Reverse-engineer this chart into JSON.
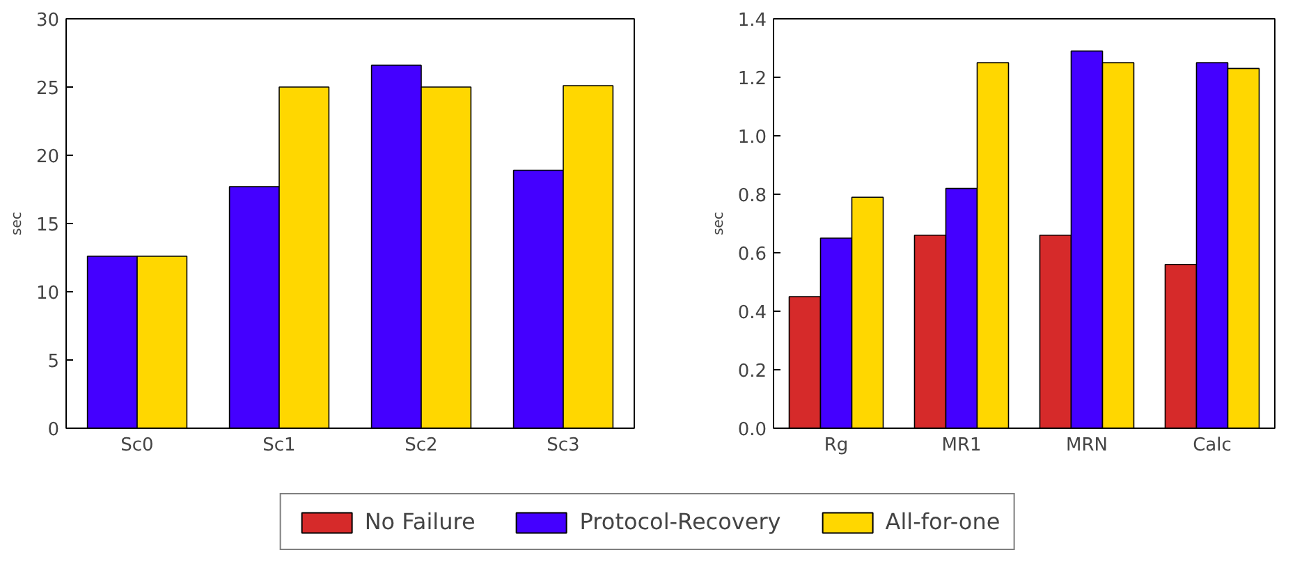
{
  "chart_data": [
    {
      "type": "bar",
      "categories": [
        "Sc0",
        "Sc1",
        "Sc2",
        "Sc3"
      ],
      "ylabel": "sec",
      "ylim": [
        0,
        30
      ],
      "yticks": [
        0,
        5,
        10,
        15,
        20,
        25,
        30
      ],
      "grid": false,
      "series": [
        {
          "color": "#4400ff",
          "values": [
            12.6,
            17.7,
            26.6,
            18.9
          ]
        },
        {
          "color": "#ffd700",
          "values": [
            12.6,
            25.0,
            25.0,
            25.1
          ]
        }
      ]
    },
    {
      "type": "bar",
      "categories": [
        "Rg",
        "MR1",
        "MRN",
        "Calc"
      ],
      "ylabel": "sec",
      "ylim": [
        0,
        1.4
      ],
      "yticks": [
        {
          "value": 0,
          "label": "0.0"
        },
        0.2,
        0.4,
        0.6,
        0.8,
        {
          "value": 1,
          "label": "1.0"
        },
        1.2,
        1.4
      ],
      "grid": false,
      "legend": "bottom",
      "series": [
        {
          "name": "No Failure",
          "color": "#d62a2a",
          "values": [
            0.45,
            0.66,
            0.66,
            0.56
          ]
        },
        {
          "name": "Protocol-Recovery",
          "color": "#4400ff",
          "values": [
            0.65,
            0.82,
            1.29,
            1.25
          ]
        },
        {
          "name": "All-for-one",
          "color": "#ffd700",
          "values": [
            0.79,
            1.25,
            1.25,
            1.23
          ]
        }
      ]
    }
  ]
}
